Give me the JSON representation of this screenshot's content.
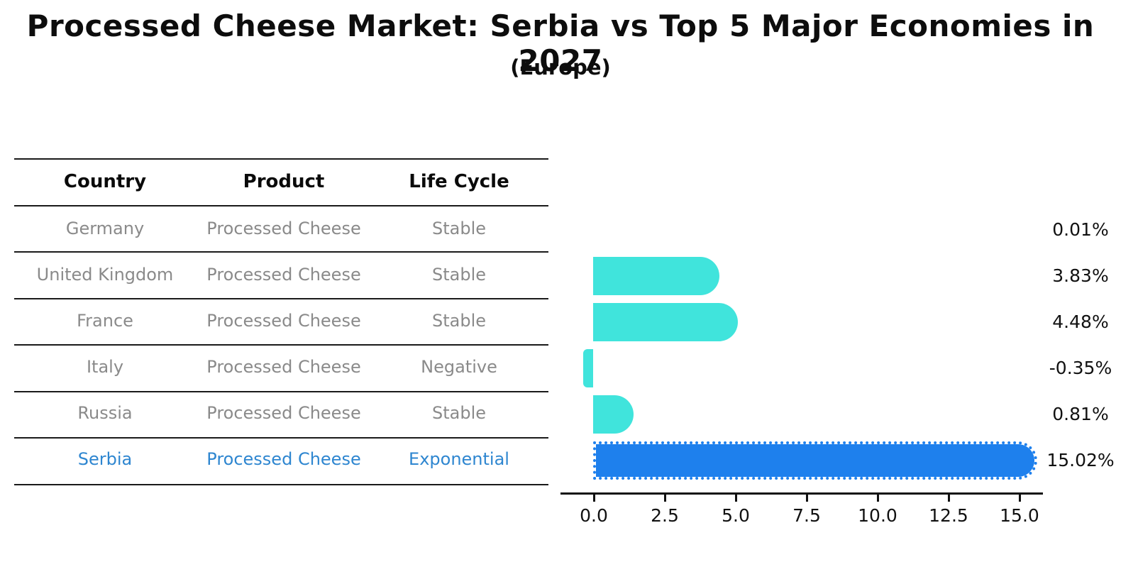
{
  "title": "Processed Cheese Market: Serbia vs Top 5 Major Economies in 2027",
  "subtitle": "(Europe)",
  "table": {
    "headers": [
      "Country",
      "Product",
      "Life Cycle"
    ],
    "rows": [
      {
        "country": "Germany",
        "product": "Processed Cheese",
        "life_cycle": "Stable",
        "highlight": false
      },
      {
        "country": "United Kingdom",
        "product": "Processed Cheese",
        "life_cycle": "Stable",
        "highlight": false
      },
      {
        "country": "France",
        "product": "Processed Cheese",
        "life_cycle": "Stable",
        "highlight": false
      },
      {
        "country": "Italy",
        "product": "Processed Cheese",
        "life_cycle": "Negative",
        "highlight": false
      },
      {
        "country": "Russia",
        "product": "Processed Cheese",
        "life_cycle": "Stable",
        "highlight": false
      },
      {
        "country": "Serbia",
        "product": "Processed Cheese",
        "life_cycle": "Exponential",
        "highlight": true
      }
    ]
  },
  "chart_data": {
    "type": "bar",
    "orientation": "horizontal",
    "title": "Processed Cheese Market: Serbia vs Top 5 Major Economies in 2027 (Europe)",
    "categories": [
      "Germany",
      "United Kingdom",
      "France",
      "Italy",
      "Russia",
      "Serbia"
    ],
    "values": [
      0.01,
      3.83,
      4.48,
      -0.35,
      0.81,
      15.02
    ],
    "labels": [
      "0.01%",
      "3.83%",
      "4.48%",
      "-0.35%",
      "0.81%",
      "15.02%"
    ],
    "x_ticks": [
      "0.0",
      "2.5",
      "5.0",
      "7.5",
      "10.0",
      "12.5",
      "15.0"
    ],
    "xlim": [
      -1.2,
      15.8
    ],
    "grid": false,
    "legend": false,
    "bar_color": "#40e4dc",
    "highlight_color": "#1e80ed",
    "highlight_index": 5,
    "highlight_border_style": "dotted"
  },
  "colors": {
    "background": "#ffffff",
    "table_line": "#1a1a1a",
    "table_text": "#8a8a8a",
    "table_highlight_text": "#2e86d0",
    "axis_text": "#111111"
  }
}
